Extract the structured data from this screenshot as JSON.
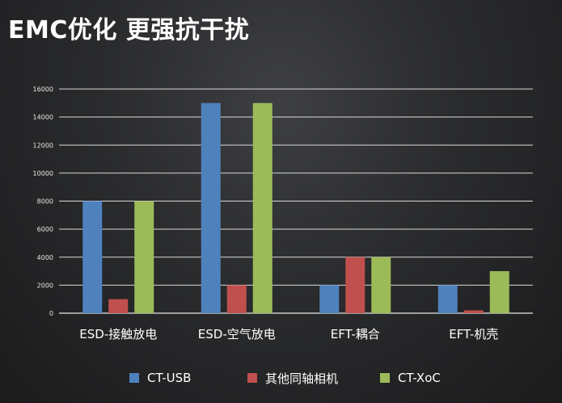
{
  "title": "EMC优化 更强抗干扰",
  "chart_data": {
    "type": "bar",
    "categories": [
      "ESD-接触放电",
      "ESD-空气放电",
      "EFT-耦合",
      "EFT-机壳"
    ],
    "series": [
      {
        "name": "CT-USB",
        "color": "#4f81bd",
        "values": [
          8000,
          15000,
          2000,
          2000
        ]
      },
      {
        "name": "其他同轴相机",
        "color": "#c0504d",
        "values": [
          1000,
          2000,
          4000,
          200
        ]
      },
      {
        "name": "CT-XoC",
        "color": "#9bbb59",
        "values": [
          8000,
          15000,
          4000,
          3000
        ]
      }
    ],
    "ylim": [
      0,
      16000
    ],
    "yticks": [
      0,
      2000,
      4000,
      6000,
      8000,
      10000,
      12000,
      14000,
      16000
    ],
    "grid": true,
    "legend_position": "bottom",
    "xlabel": "",
    "ylabel": ""
  }
}
